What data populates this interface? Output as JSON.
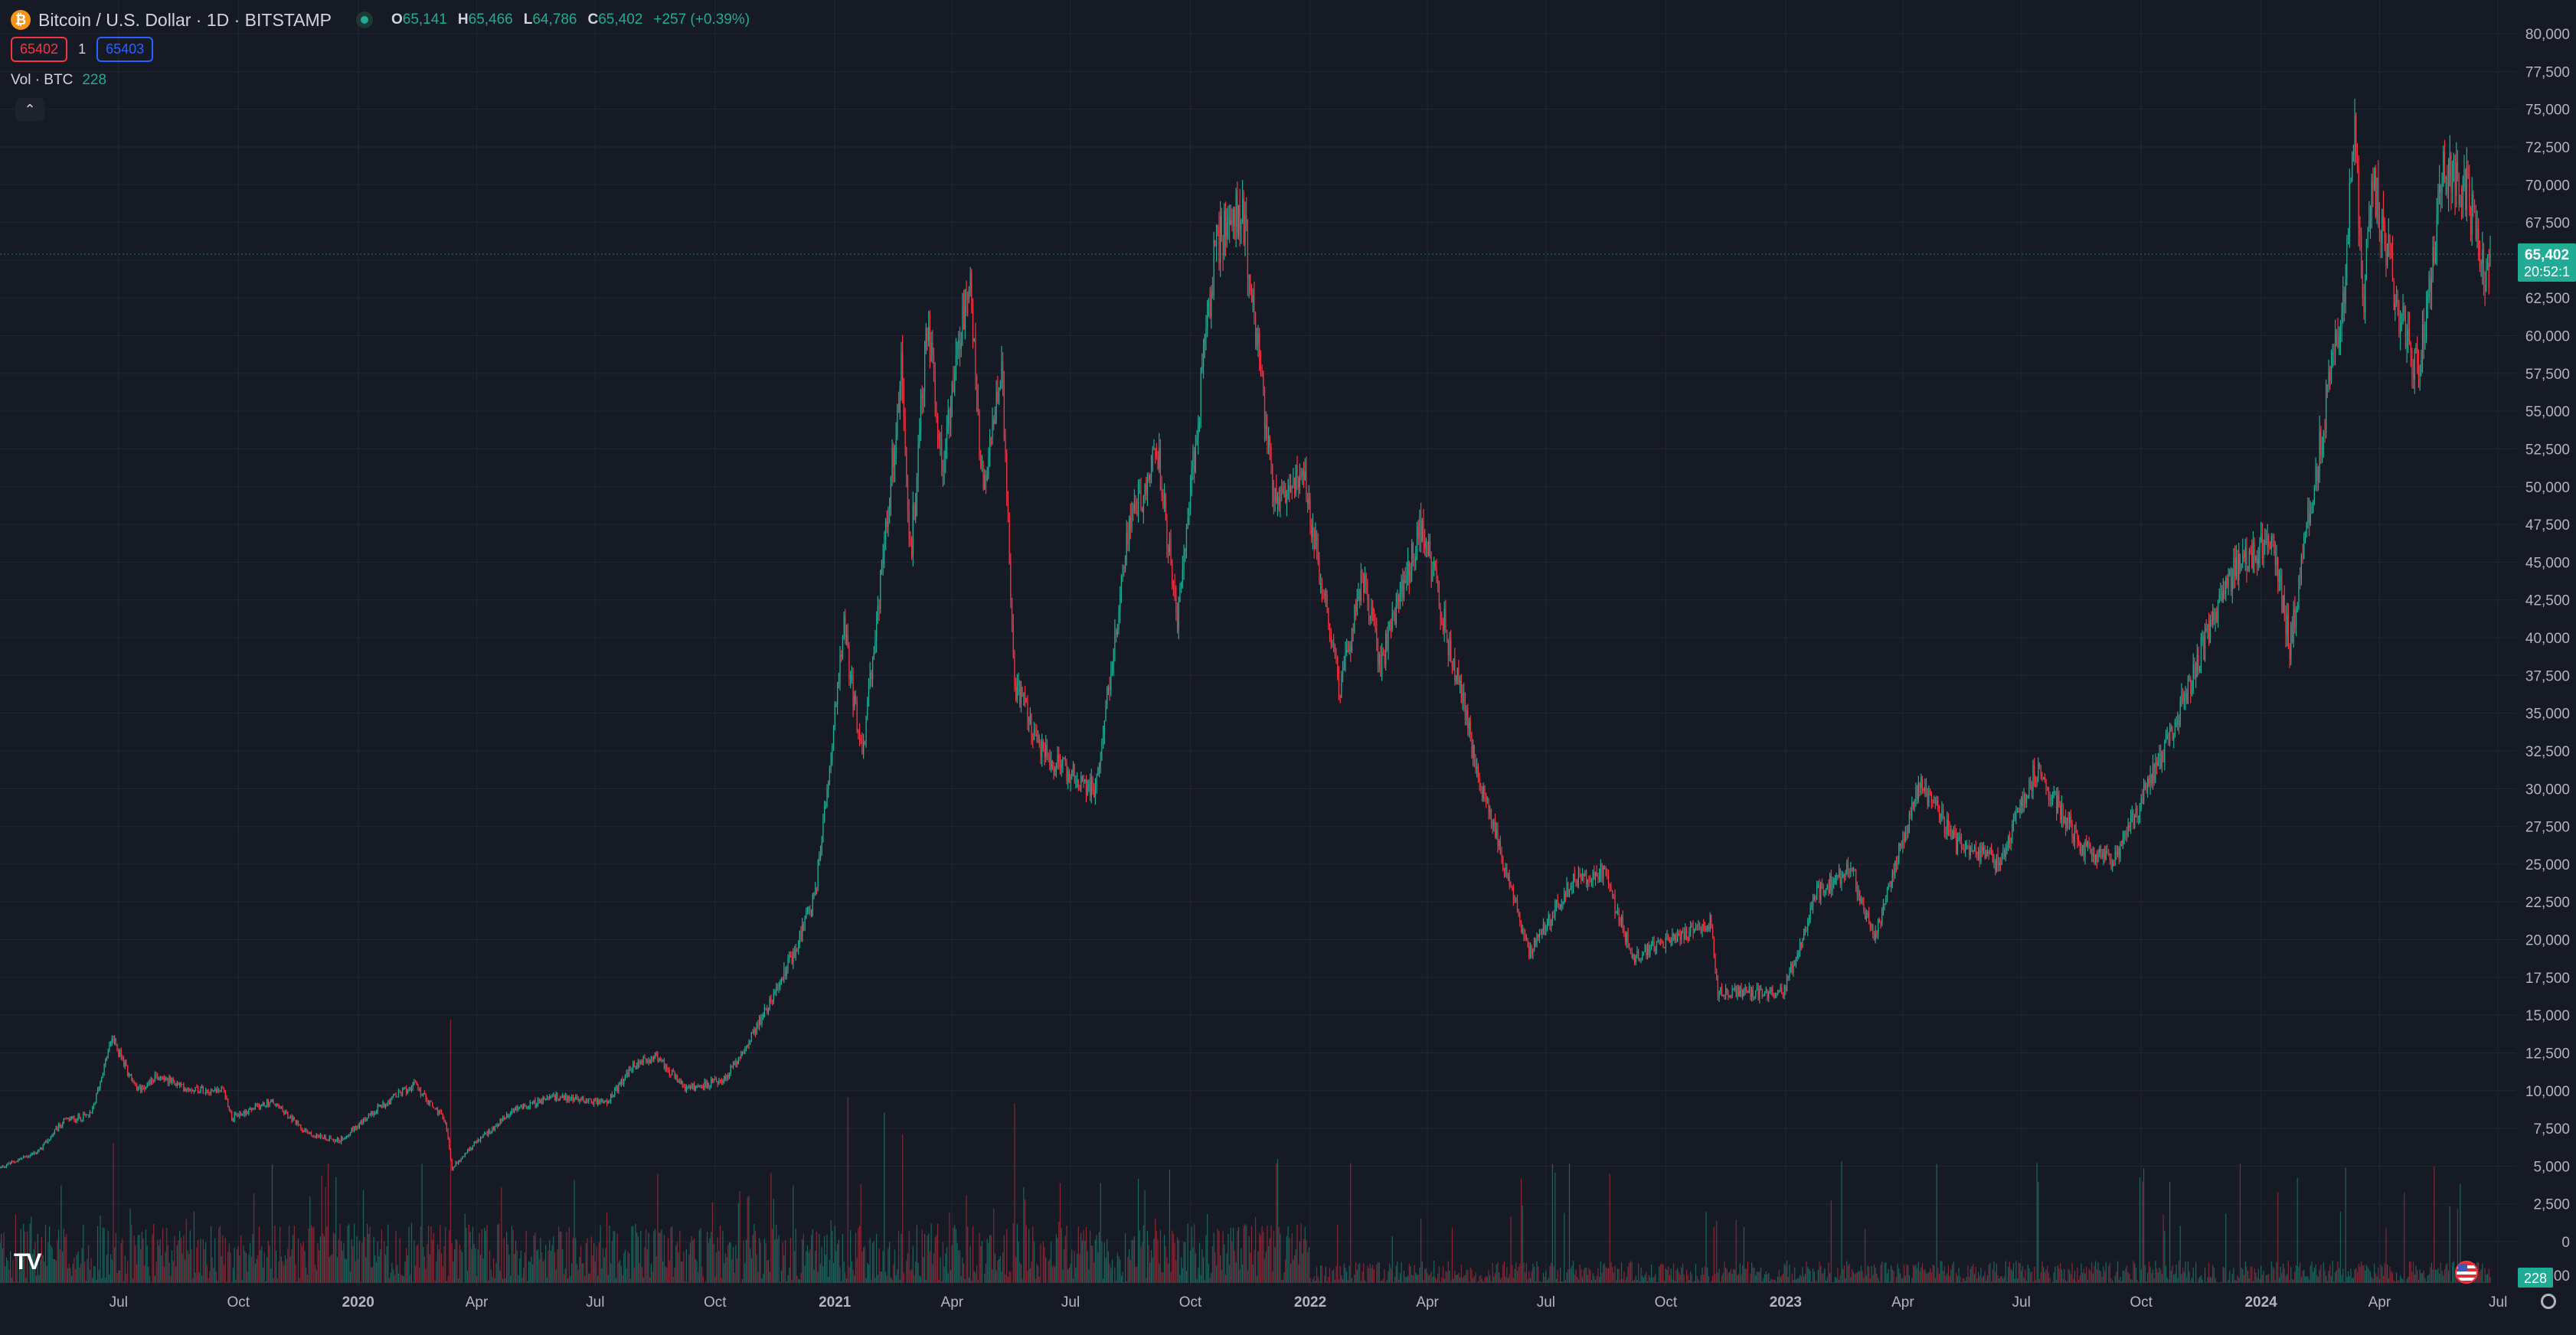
{
  "header": {
    "symbol_title": "Bitcoin / U.S. Dollar · 1D · BITSTAMP",
    "ohlc": {
      "o_label": "O",
      "o_value": "65,141",
      "h_label": "H",
      "h_value": "65,466",
      "l_label": "L",
      "l_value": "64,786",
      "c_label": "C",
      "c_value": "65,402",
      "change": "+257 (+0.39%)"
    }
  },
  "quote": {
    "sell": "65402",
    "spread": "1",
    "buy": "65403"
  },
  "volume_legend": {
    "label": "Vol · BTC",
    "value": "228"
  },
  "icons": {
    "coin": "bitcoin-icon",
    "live": "market-open-icon",
    "collapse": "chevron-up-icon",
    "logo": "tradingview-logo",
    "flag": "us-flag-icon",
    "settings": "gear-icon"
  },
  "colors": {
    "up": "#22ab94",
    "down": "#f23645",
    "background": "#161a25",
    "grid": "#232733",
    "axis_text": "#b2b5be",
    "price_tag": "#22ab94"
  },
  "chart_data": {
    "type": "candlestick",
    "title": "Bitcoin / U.S. Dollar · 1D · BITSTAMP",
    "interval": "1D",
    "ylim": [
      0,
      80000
    ],
    "y_ticks": [
      0,
      2500,
      5000,
      7500,
      10000,
      12500,
      15000,
      17500,
      20000,
      22500,
      25000,
      27500,
      30000,
      32500,
      35000,
      37500,
      40000,
      42500,
      45000,
      47500,
      50000,
      52500,
      55000,
      57500,
      60000,
      62500,
      65000,
      67500,
      70000,
      72500,
      75000,
      77500,
      80000
    ],
    "y_tick_labels": [
      "0",
      "2,500",
      "5,000",
      "7,500",
      "10,000",
      "12,500",
      "15,000",
      "17,500",
      "20,000",
      "22,500",
      "25,000",
      "27,500",
      "30,000",
      "32,500",
      "35,000",
      "37,500",
      "40,000",
      "42,500",
      "45,000",
      "47,500",
      "50,000",
      "52,500",
      "55,000",
      "57,500",
      "60,000",
      "62,500",
      "65,000",
      "67,500",
      "70,000",
      "72,500",
      "75,000",
      "77,500",
      "80,000"
    ],
    "bottom_axis_partial_label": "00",
    "x_start": "2019-04-01",
    "x_end": "2024-07-15",
    "x_ticks": [
      {
        "date": "2019-07-01",
        "label": "Jul"
      },
      {
        "date": "2019-10-01",
        "label": "Oct"
      },
      {
        "date": "2020-01-01",
        "label": "2020"
      },
      {
        "date": "2020-04-01",
        "label": "Apr"
      },
      {
        "date": "2020-07-01",
        "label": "Jul"
      },
      {
        "date": "2020-10-01",
        "label": "Oct"
      },
      {
        "date": "2021-01-01",
        "label": "2021"
      },
      {
        "date": "2021-04-01",
        "label": "Apr"
      },
      {
        "date": "2021-07-01",
        "label": "Jul"
      },
      {
        "date": "2021-10-01",
        "label": "Oct"
      },
      {
        "date": "2022-01-01",
        "label": "2022"
      },
      {
        "date": "2022-04-01",
        "label": "Apr"
      },
      {
        "date": "2022-07-01",
        "label": "Jul"
      },
      {
        "date": "2022-10-01",
        "label": "Oct"
      },
      {
        "date": "2023-01-01",
        "label": "2023"
      },
      {
        "date": "2023-04-01",
        "label": "Apr"
      },
      {
        "date": "2023-07-01",
        "label": "Jul"
      },
      {
        "date": "2023-10-01",
        "label": "Oct"
      },
      {
        "date": "2024-01-01",
        "label": "2024"
      },
      {
        "date": "2024-04-01",
        "label": "Apr"
      },
      {
        "date": "2024-07-01",
        "label": "Jul"
      }
    ],
    "close_anchors": [
      [
        "2019-04-01",
        4900
      ],
      [
        "2019-05-01",
        6000
      ],
      [
        "2019-05-20",
        8000
      ],
      [
        "2019-06-10",
        8400
      ],
      [
        "2019-06-26",
        13500
      ],
      [
        "2019-07-15",
        10000
      ],
      [
        "2019-08-01",
        11000
      ],
      [
        "2019-08-20",
        10200
      ],
      [
        "2019-09-20",
        10000
      ],
      [
        "2019-09-26",
        8200
      ],
      [
        "2019-10-26",
        9300
      ],
      [
        "2019-11-25",
        7100
      ],
      [
        "2019-12-18",
        6700
      ],
      [
        "2020-01-15",
        8800
      ],
      [
        "2020-02-13",
        10400
      ],
      [
        "2020-03-08",
        8000
      ],
      [
        "2020-03-13",
        4900
      ],
      [
        "2020-04-01",
        6600
      ],
      [
        "2020-05-01",
        8800
      ],
      [
        "2020-06-01",
        9600
      ],
      [
        "2020-07-10",
        9200
      ],
      [
        "2020-07-31",
        11700
      ],
      [
        "2020-08-17",
        12300
      ],
      [
        "2020-09-08",
        10100
      ],
      [
        "2020-10-08",
        10700
      ],
      [
        "2020-10-31",
        13800
      ],
      [
        "2020-11-30",
        19000
      ],
      [
        "2020-12-17",
        23000
      ],
      [
        "2021-01-08",
        40500
      ],
      [
        "2021-01-22",
        32000
      ],
      [
        "2021-02-08",
        46000
      ],
      [
        "2021-02-21",
        57500
      ],
      [
        "2021-02-28",
        45200
      ],
      [
        "2021-03-13",
        61000
      ],
      [
        "2021-03-25",
        51500
      ],
      [
        "2021-04-14",
        64000
      ],
      [
        "2021-04-25",
        49000
      ],
      [
        "2021-05-09",
        58500
      ],
      [
        "2021-05-19",
        37000
      ],
      [
        "2021-06-08",
        32500
      ],
      [
        "2021-06-22",
        31600
      ],
      [
        "2021-07-20",
        29800
      ],
      [
        "2021-08-14",
        47000
      ],
      [
        "2021-09-06",
        52300
      ],
      [
        "2021-09-21",
        40800
      ],
      [
        "2021-10-20",
        66000
      ],
      [
        "2021-11-10",
        68500
      ],
      [
        "2021-12-04",
        49000
      ],
      [
        "2021-12-27",
        50800
      ],
      [
        "2022-01-24",
        36500
      ],
      [
        "2022-02-10",
        44000
      ],
      [
        "2022-02-24",
        38300
      ],
      [
        "2022-03-28",
        47500
      ],
      [
        "2022-05-10",
        31000
      ],
      [
        "2022-06-18",
        19000
      ],
      [
        "2022-07-20",
        23800
      ],
      [
        "2022-08-14",
        24500
      ],
      [
        "2022-09-06",
        18800
      ],
      [
        "2022-11-05",
        21200
      ],
      [
        "2022-11-10",
        16500
      ],
      [
        "2022-12-30",
        16500
      ],
      [
        "2023-01-25",
        23000
      ],
      [
        "2023-02-20",
        24800
      ],
      [
        "2023-03-10",
        20000
      ],
      [
        "2023-04-14",
        30500
      ],
      [
        "2023-05-12",
        26300
      ],
      [
        "2023-06-14",
        25100
      ],
      [
        "2023-07-13",
        31400
      ],
      [
        "2023-08-17",
        26000
      ],
      [
        "2023-09-10",
        25100
      ],
      [
        "2023-10-23",
        33500
      ],
      [
        "2023-12-08",
        44000
      ],
      [
        "2024-01-10",
        46500
      ],
      [
        "2024-01-23",
        39500
      ],
      [
        "2024-02-14",
        51900
      ],
      [
        "2024-03-05",
        63500
      ],
      [
        "2024-03-13",
        73500
      ],
      [
        "2024-03-19",
        62000
      ],
      [
        "2024-03-27",
        70500
      ],
      [
        "2024-04-17",
        61000
      ],
      [
        "2024-05-01",
        57500
      ],
      [
        "2024-05-20",
        71200
      ],
      [
        "2024-06-07",
        69500
      ],
      [
        "2024-06-18",
        64800
      ],
      [
        "2024-06-24",
        63200
      ],
      [
        "2024-06-25",
        65402
      ]
    ],
    "last_price": 65402,
    "last_price_label": "65,402",
    "countdown_label": "20:52:1",
    "volume_last_label": "228",
    "volume_spikes": [
      [
        "2019-06-27",
        0.45
      ],
      [
        "2020-01-05",
        0.3
      ],
      [
        "2020-03-12",
        0.85
      ],
      [
        "2021-01-11",
        0.6
      ],
      [
        "2021-02-08",
        0.55
      ],
      [
        "2021-02-22",
        0.48
      ],
      [
        "2021-05-19",
        0.58
      ],
      [
        "2022-06-13",
        0.25
      ],
      [
        "2022-11-09",
        0.2
      ]
    ],
    "grid": true
  }
}
